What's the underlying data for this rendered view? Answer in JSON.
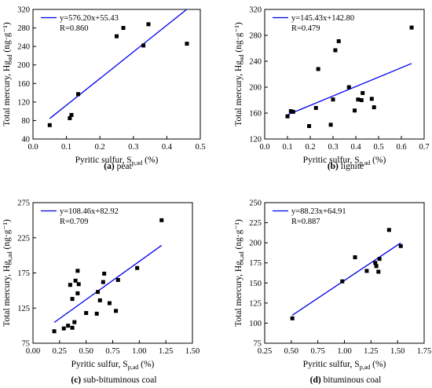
{
  "figure": {
    "panels": [
      {
        "caption_letter": "(a)",
        "caption_text": " peat",
        "equation": "y=576.20x+55.43",
        "r_label": "R=0.860",
        "xlabel_main": "Pyritic sulfur, S",
        "xlabel_sub": "p,ad",
        "xlabel_unit": " (%)",
        "ylabel_main": "Total mercury, Hg",
        "ylabel_sub": "ad",
        "ylabel_unit": " (ng·g⁻¹)"
      },
      {
        "caption_letter": "(b)",
        "caption_text": " lignite",
        "equation": "y=145.43x+142.80",
        "r_label": "R=0.479",
        "xlabel_main": "Pyritic sulfur, S",
        "xlabel_sub": "p,ad",
        "xlabel_unit": " (%)",
        "ylabel_main": "Total mercury, Hg",
        "ylabel_sub": "ad",
        "ylabel_unit": " (ng·g⁻¹)"
      },
      {
        "caption_letter": "(c)",
        "caption_text": " sub-bituminous coal",
        "equation": "y=108.46x+82.92",
        "r_label": "R=0.709",
        "xlabel_main": "Pyritic sulfur, S",
        "xlabel_sub": "p,ad",
        "xlabel_unit": " (%)",
        "ylabel_main": "Total mercury, Hg",
        "ylabel_sub": "t,ad",
        "ylabel_unit": " (ng·g⁻¹)"
      },
      {
        "caption_letter": "(d)",
        "caption_text": " bituminous coal",
        "equation": "y=88.23x+64.91",
        "r_label": "R=0.887",
        "xlabel_main": "Pyritic sulfur, S",
        "xlabel_sub": "p,ad",
        "xlabel_unit": " (%)",
        "ylabel_main": "Total mercury, Hg",
        "ylabel_sub": "t,ad",
        "ylabel_unit": " (ng·g⁻¹)"
      }
    ]
  },
  "colors": {
    "fit_line": "#0000ee",
    "points": "#000000",
    "axes": "#000000"
  },
  "chart_data": [
    {
      "type": "scatter",
      "title": "peat",
      "xlabel": "Pyritic sulfur, Sp,ad (%)",
      "ylabel": "Total mercury, Hgad (ng·g⁻¹)",
      "xlim": [
        0.0,
        0.5
      ],
      "ylim": [
        40,
        320
      ],
      "xticks": [
        0.0,
        0.1,
        0.2,
        0.3,
        0.4,
        0.5
      ],
      "xtick_labels": [
        "0.0",
        "0.1",
        "0.2",
        "0.3",
        "0.4",
        "0.5"
      ],
      "yticks": [
        40,
        80,
        120,
        160,
        200,
        240,
        280,
        320
      ],
      "ytick_labels": [
        "40",
        "80",
        "120",
        "160",
        "200",
        "240",
        "280",
        "320"
      ],
      "points": [
        [
          0.05,
          70
        ],
        [
          0.11,
          85
        ],
        [
          0.115,
          92
        ],
        [
          0.135,
          137
        ],
        [
          0.25,
          262
        ],
        [
          0.27,
          280
        ],
        [
          0.33,
          242
        ],
        [
          0.345,
          288
        ],
        [
          0.46,
          246
        ]
      ],
      "fit": {
        "slope": 576.2,
        "intercept": 55.43,
        "x_range": [
          0.05,
          0.46
        ]
      },
      "legend_position": "top-left",
      "grid": false
    },
    {
      "type": "scatter",
      "title": "lignite",
      "xlabel": "Pyritic sulfur, Sp,ad (%)",
      "ylabel": "Total mercury, Hgad (ng·g⁻¹)",
      "xlim": [
        0.0,
        0.7
      ],
      "ylim": [
        120,
        320
      ],
      "xticks": [
        0.0,
        0.1,
        0.2,
        0.3,
        0.4,
        0.5,
        0.6,
        0.7
      ],
      "xtick_labels": [
        "0.0",
        "0.1",
        "0.2",
        "0.3",
        "0.4",
        "0.5",
        "0.6",
        "0.7"
      ],
      "yticks": [
        120,
        160,
        200,
        240,
        280,
        320
      ],
      "ytick_labels": [
        "120",
        "160",
        "200",
        "240",
        "280",
        "320"
      ],
      "points": [
        [
          0.1,
          155
        ],
        [
          0.115,
          163
        ],
        [
          0.125,
          162
        ],
        [
          0.195,
          140
        ],
        [
          0.225,
          168
        ],
        [
          0.235,
          228
        ],
        [
          0.29,
          142
        ],
        [
          0.3,
          181
        ],
        [
          0.31,
          257
        ],
        [
          0.325,
          271
        ],
        [
          0.37,
          200
        ],
        [
          0.395,
          164
        ],
        [
          0.41,
          181
        ],
        [
          0.425,
          180
        ],
        [
          0.43,
          191
        ],
        [
          0.47,
          182
        ],
        [
          0.48,
          169
        ],
        [
          0.645,
          292
        ]
      ],
      "fit": {
        "slope": 145.43,
        "intercept": 142.8,
        "x_range": [
          0.1,
          0.645
        ]
      },
      "legend_position": "top-left",
      "grid": false
    },
    {
      "type": "scatter",
      "title": "sub-bituminous coal",
      "xlabel": "Pyritic sulfur, Sp,ad (%)",
      "ylabel": "Total mercury, Hgt,ad (ng·g⁻¹)",
      "xlim": [
        0.0,
        1.5
      ],
      "ylim": [
        75,
        275
      ],
      "xticks": [
        0.0,
        0.25,
        0.5,
        0.75,
        1.0,
        1.25,
        1.5
      ],
      "xtick_labels": [
        "0.00",
        "0.25",
        "0.50",
        "0.75",
        "1.00",
        "1.25",
        "1.50"
      ],
      "yticks": [
        75,
        125,
        175,
        225,
        275
      ],
      "ytick_labels": [
        "75",
        "125",
        "175",
        "225",
        "275"
      ],
      "points": [
        [
          0.2,
          92
        ],
        [
          0.29,
          96
        ],
        [
          0.33,
          100
        ],
        [
          0.35,
          158
        ],
        [
          0.37,
          97
        ],
        [
          0.37,
          138
        ],
        [
          0.39,
          105
        ],
        [
          0.4,
          164
        ],
        [
          0.42,
          146
        ],
        [
          0.42,
          178
        ],
        [
          0.43,
          159
        ],
        [
          0.5,
          118
        ],
        [
          0.6,
          117
        ],
        [
          0.61,
          148
        ],
        [
          0.63,
          136
        ],
        [
          0.66,
          162
        ],
        [
          0.67,
          174
        ],
        [
          0.72,
          132
        ],
        [
          0.78,
          121
        ],
        [
          0.8,
          165
        ],
        [
          0.98,
          182
        ],
        [
          1.21,
          250
        ]
      ],
      "fit": {
        "slope": 108.46,
        "intercept": 82.92,
        "x_range": [
          0.2,
          1.21
        ]
      },
      "legend_position": "top-left",
      "grid": false
    },
    {
      "type": "scatter",
      "title": "bituminous coal",
      "xlabel": "Pyritic sulfur, Sp,ad (%)",
      "ylabel": "Total mercury, Hgt,ad (ng·g⁻¹)",
      "xlim": [
        0.25,
        1.75
      ],
      "ylim": [
        75,
        250
      ],
      "xticks": [
        0.25,
        0.5,
        0.75,
        1.0,
        1.25,
        1.5,
        1.75
      ],
      "xtick_labels": [
        "0.25",
        "0.50",
        "0.75",
        "1.00",
        "1.25",
        "1.50",
        "1.75"
      ],
      "yticks": [
        75,
        100,
        125,
        150,
        175,
        200,
        225,
        250
      ],
      "ytick_labels": [
        "75",
        "100",
        "125",
        "150",
        "175",
        "200",
        "225",
        "250"
      ],
      "points": [
        [
          0.51,
          106
        ],
        [
          0.98,
          152
        ],
        [
          1.1,
          182
        ],
        [
          1.21,
          165
        ],
        [
          1.29,
          175
        ],
        [
          1.3,
          171
        ],
        [
          1.32,
          164
        ],
        [
          1.33,
          180
        ],
        [
          1.42,
          216
        ],
        [
          1.53,
          196
        ]
      ],
      "fit": {
        "slope": 88.23,
        "intercept": 64.91,
        "x_range": [
          0.51,
          1.53
        ]
      },
      "legend_position": "top-left",
      "grid": false
    }
  ]
}
